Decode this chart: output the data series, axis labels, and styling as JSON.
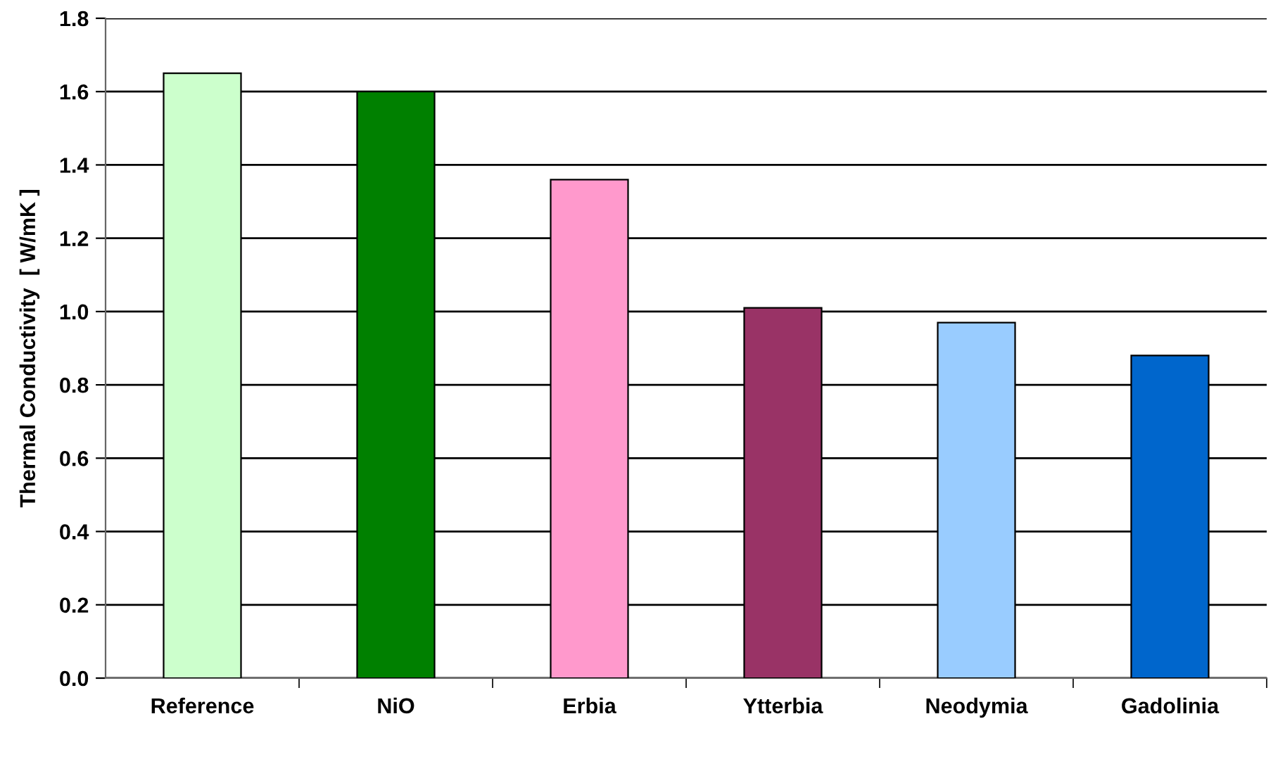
{
  "chart_data": {
    "type": "bar",
    "ylabel": "Thermal Conductivity  [ W/mK ]",
    "categories": [
      "Reference",
      "NiO",
      "Erbia",
      "Ytterbia",
      "Neodymia",
      "Gadolinia"
    ],
    "values": [
      1.65,
      1.6,
      1.36,
      1.01,
      0.97,
      0.88
    ],
    "colors": [
      "#ccffcc",
      "#008000",
      "#ff99cc",
      "#993366",
      "#99ccff",
      "#0066cc"
    ],
    "ylim": [
      0,
      1.8
    ],
    "yticks": [
      {
        "value": 0,
        "label": "0.0"
      },
      {
        "value": 0.2,
        "label": "0.2"
      },
      {
        "value": 0.4,
        "label": "0.4"
      },
      {
        "value": 0.6,
        "label": "0.6"
      },
      {
        "value": 0.8,
        "label": "0.8"
      },
      {
        "value": 1.0,
        "label": "1.0"
      },
      {
        "value": 1.2,
        "label": "1.2"
      },
      {
        "value": 1.4,
        "label": "1.4"
      },
      {
        "value": 1.6,
        "label": "1.6"
      },
      {
        "value": 1.8,
        "label": "1.8"
      }
    ],
    "grid": "y",
    "legend": false
  }
}
